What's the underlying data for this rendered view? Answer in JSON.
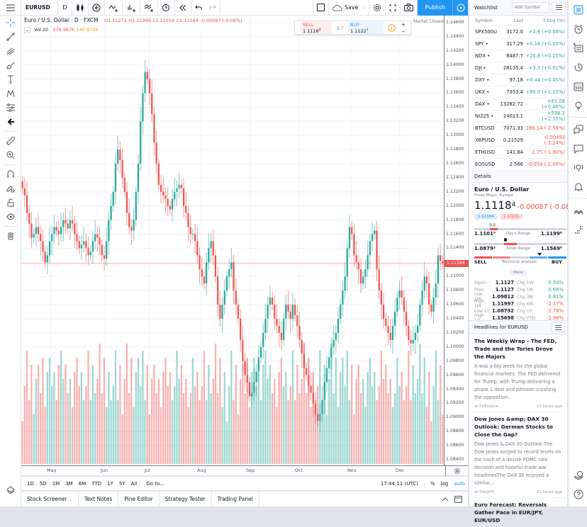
{
  "topbar": {
    "symbol": "EURUSD",
    "interval": "D",
    "save_label": "Save",
    "publish_label": "Publish"
  },
  "legend": {
    "title": "Euro / U.S. Dollar · D · FXCM",
    "open": "O1.11271",
    "high": "H1.11996",
    "low": "L1.11019",
    "close": "C1.11184",
    "change": "-0.00087 (-0.08%)",
    "vol_label": "Vol 20",
    "vol_value1": "279.967K",
    "vol_value2": "140.972K"
  },
  "trade": {
    "sell_label": "SELL",
    "sell_price": "1.1118",
    "sell_sup": "4",
    "spread": "3.7",
    "buy_label": "BUY",
    "buy_price": "1.1122",
    "buy_sup": "1",
    "market_status": "Market Closed"
  },
  "price_axis": {
    "ticks": [
      "1.14600",
      "1.14400",
      "1.14200",
      "1.14000",
      "1.13800",
      "1.13600",
      "1.13400",
      "1.13200",
      "1.13000",
      "1.12800",
      "1.12600",
      "1.12400",
      "1.12200",
      "1.12000",
      "1.11800",
      "1.11600",
      "1.11400",
      "1.11000",
      "1.10800",
      "1.10600",
      "1.10400",
      "1.10200",
      "1.10000",
      "1.09800",
      "1.09600",
      "1.09400",
      "1.09200",
      "1.09000",
      "1.08800",
      "1.08600",
      "1.08400"
    ],
    "current_price": "1.11184"
  },
  "time_axis": {
    "ticks": [
      "May",
      "Jun",
      "Jul",
      "Aug",
      "Sep",
      "Oct",
      "Nov",
      "Dec"
    ]
  },
  "range_bar": {
    "ranges": [
      "1D",
      "5D",
      "1M",
      "3M",
      "6M",
      "YTD",
      "1Y",
      "5Y",
      "All"
    ],
    "goto_label": "Go to...",
    "clock": "17:44:11 (UTC)",
    "percent_label": "%",
    "log_label": "log",
    "auto_label": "auto"
  },
  "bottom_panels": [
    "Stock Screener",
    "Text Notes",
    "Pine Editor",
    "Strategy Tester",
    "Trading Panel"
  ],
  "watchlist": {
    "title": "Watchlist",
    "add_symbol_placeholder": "Add Symbol",
    "columns": [
      "Symbol",
      "Last",
      "Chng (%)"
    ],
    "rows": [
      {
        "symbol": "SPX500U",
        "last": "3172.0",
        "change": "+2.6 (+0.08%)",
        "dir": "pos"
      },
      {
        "symbol": "SPY •",
        "last": "317.29",
        "change": "+0.16 (+0.05%)",
        "dir": "pos"
      },
      {
        "symbol": "NDX •",
        "last": "8487.7",
        "change": "+20.8 (+0.25%)",
        "dir": "pos"
      },
      {
        "symbol": "DJI •",
        "last": "28135.4",
        "change": "+3.3 (+0.01%)",
        "dir": "pos"
      },
      {
        "symbol": "DXY •",
        "last": "97.18",
        "change": "+0.44 (+0.45%)",
        "dir": "pos"
      },
      {
        "symbol": "UKX •",
        "last": "7353.4",
        "change": "+80.0 (+1.10%)",
        "dir": "pos"
      },
      {
        "symbol": "DAX •",
        "last": "13282.72",
        "change": "+61.08 (+0.46%)",
        "dir": "pos"
      },
      {
        "symbol": "NI225 •",
        "last": "24023.1",
        "change": "+598.3 (+2.55%)",
        "dir": "pos"
      },
      {
        "symbol": "BTCUSD",
        "last": "7071.33",
        "change": "-186.14 (-2.56%)",
        "dir": "neg"
      },
      {
        "symbol": "XRPUSD",
        "last": "0.21529",
        "change": "-0.00493 (-2.24%)",
        "dir": "neg"
      },
      {
        "symbol": "ETHUSD",
        "last": "141.84",
        "change": "-2.75 (-1.90%)",
        "dir": "neg"
      },
      {
        "symbol": "EOSUSD",
        "last": "2.566",
        "change": "-0.054 (-2.06%)",
        "dir": "neg"
      }
    ]
  },
  "details": {
    "section_label": "Details",
    "name": "Euro / U.S. Dollar",
    "category": "Forex Major: Europe",
    "price": "1.1118",
    "price_sup": "4",
    "change": "-0.00087 (-0.08%)",
    "bid_badge": "1.11184",
    "ask_badge": "1.11221",
    "day_low": "1.1101⁹",
    "day_range_label": "Day's Range",
    "day_high": "1.1199⁶",
    "wk_low": "1.0879²",
    "wk_range_label": "52wk Range",
    "wk_high": "1.1569⁸",
    "sell_label": "SELL",
    "tech_label": "Technical analysis",
    "buy_label": "BUY",
    "more_label": "More",
    "stats": [
      {
        "l": "Open:",
        "v": "1.1127",
        "l2": "Chg 1W:",
        "v2": "0.54%",
        "dir": "pos"
      },
      {
        "l": "Prev:",
        "v": "1.1127",
        "l2": "Chg 1M:",
        "v2": "0.66%",
        "dir": "pos"
      },
      {
        "l": "Low 1M:",
        "v": "1.09812",
        "l2": "Chg 3M:",
        "v2": "0.81%",
        "dir": "pos"
      },
      {
        "l": "High 1M:",
        "v": "1.11997",
        "l2": "Chg 6M:",
        "v2": "-2.17%",
        "dir": "neg"
      },
      {
        "l": "Low 1Y:",
        "v": "1.08792",
        "l2": "Chg 1Y:",
        "v2": "-2.78%",
        "dir": "neg"
      },
      {
        "l": "High 1Y:",
        "v": "1.15698",
        "l2": "Chg YTD:",
        "v2": "-2.98%",
        "dir": "neg"
      }
    ]
  },
  "headlines": {
    "section_label": "Headlines for EURUSD",
    "items": [
      {
        "title": "The Weekly Wrap - The FED, Trade and the Tories Drove the Majors",
        "body": "It was a big week for the global financial markets. The FED delivered for Trump, with Trump delivering a phase 1 deal and Johnson crushing the opposition.",
        "source": "at FXEmpire",
        "time": "17 hours ago"
      },
      {
        "title": "Dow Jones &amp; DAX 30 Outlook: German Stocks to Close the Gap?",
        "body": "Dow Jones & DAX 30 Outlook:The Dow Jones surged to record levels on the back of a dovish FOMC rate decision and hopeful trade war headlinesThe DAX 30 enjoyed a similar...",
        "source": "at DailyFX",
        "time": "21 hours ago"
      },
      {
        "title": "Euro Forecast: Reversals Gather Pace in EUR/JPY, EUR/USD",
        "body": "",
        "source": "",
        "time": ""
      }
    ]
  },
  "colors": {
    "up": "#26a69a",
    "down": "#ef5350",
    "accent": "#2196f3"
  },
  "chart_data": {
    "type": "candlestick",
    "title": "Euro / U.S. Dollar · D · FXCM",
    "x_ticks": [
      "May",
      "Jun",
      "Jul",
      "Aug",
      "Sep",
      "Oct",
      "Nov",
      "Dec"
    ],
    "ylim": [
      1.083,
      1.147
    ],
    "last_close": 1.11184,
    "ohlc_last": {
      "open": 1.11271,
      "high": 1.11996,
      "low": 1.11019,
      "close": 1.11184
    },
    "volume_indicator": "Vol 20"
  }
}
